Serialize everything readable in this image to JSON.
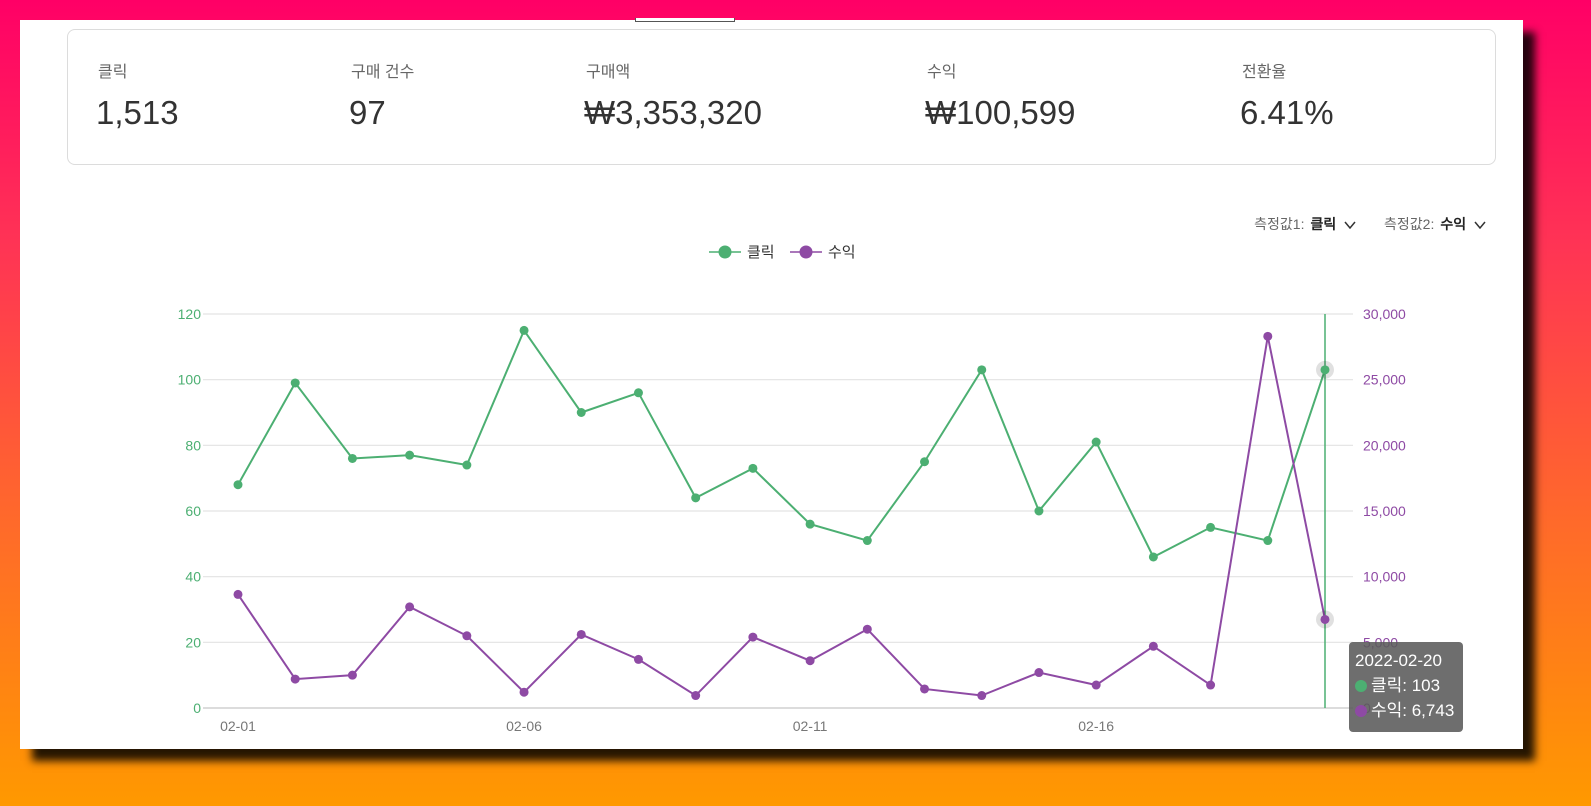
{
  "summary": [
    {
      "label": "클릭",
      "value": "1,513"
    },
    {
      "label": "구매 건수",
      "value": "97"
    },
    {
      "label": "구매액",
      "value": "₩3,353,320"
    },
    {
      "label": "수익",
      "value": "₩100,599"
    },
    {
      "label": "전환율",
      "value": "6.41%"
    }
  ],
  "selectors": {
    "metric1_label": "측정값1:",
    "metric1_value": "클릭",
    "metric2_label": "측정값2:",
    "metric2_value": "수익"
  },
  "tooltip": {
    "date": "2022-02-20",
    "line1": "클릭: 103",
    "line2": "수익: 6,743"
  },
  "colors": {
    "clicks": "#4caf72",
    "revenue": "#8e4aa4"
  },
  "chart_data": {
    "type": "line",
    "categories": [
      "02-01",
      "02-02",
      "02-03",
      "02-04",
      "02-05",
      "02-06",
      "02-07",
      "02-08",
      "02-09",
      "02-10",
      "02-11",
      "02-12",
      "02-13",
      "02-14",
      "02-15",
      "02-16",
      "02-17",
      "02-18",
      "02-19",
      "02-20"
    ],
    "x_tick_labels": [
      "02-01",
      "02-06",
      "02-11",
      "02-16"
    ],
    "series": [
      {
        "name": "클릭",
        "axis": "left",
        "color": "#4caf72",
        "values": [
          68,
          99,
          76,
          77,
          74,
          115,
          90,
          96,
          64,
          73,
          56,
          51,
          75,
          103,
          60,
          81,
          46,
          55,
          51,
          103
        ]
      },
      {
        "name": "수익",
        "axis": "right",
        "color": "#8e4aa4",
        "values": [
          8650,
          2200,
          2500,
          7700,
          5500,
          1200,
          5600,
          3700,
          950,
          5400,
          3600,
          6000,
          1450,
          950,
          2700,
          1750,
          4700,
          1750,
          28300,
          6743
        ]
      }
    ],
    "y_left": {
      "min": 0,
      "max": 120,
      "ticks": [
        "0",
        "20",
        "40",
        "60",
        "80",
        "100",
        "120"
      ]
    },
    "y_right": {
      "min": 0,
      "max": 30000,
      "ticks": [
        "0",
        "5,000",
        "10,000",
        "15,000",
        "20,000",
        "25,000",
        "30,000"
      ]
    },
    "highlighted_category": "02-20",
    "grid": true,
    "legend": "top-center"
  }
}
